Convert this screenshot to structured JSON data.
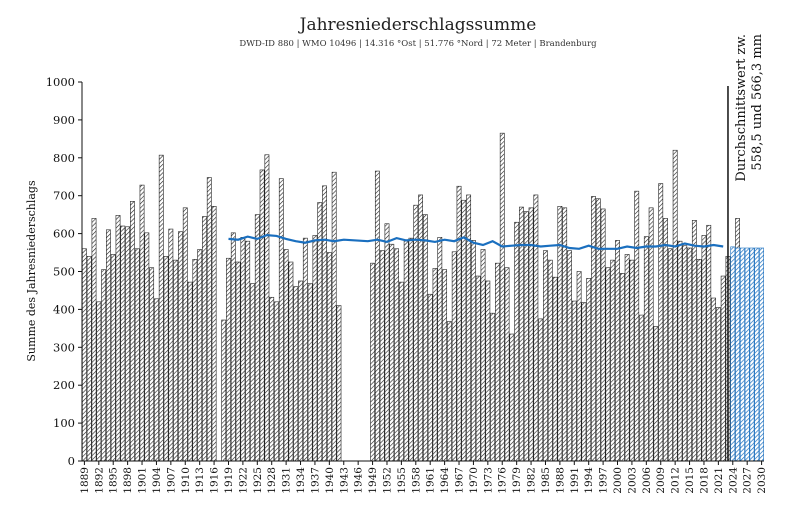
{
  "chart_data": {
    "type": "bar",
    "title": "Jahresniederschlagssumme",
    "subtitle": "DWD-ID 880  |  WMO 10496  |  14.316 °Ost  |  51.776 °Nord  |  72 Meter  |  Brandenburg",
    "xlabel": "",
    "ylabel": "Summe des Jahresniederschlags",
    "ylim": [
      0,
      1000
    ],
    "yticks": [
      0,
      100,
      200,
      300,
      400,
      500,
      600,
      700,
      800,
      900,
      1000
    ],
    "x_start": 1889,
    "x_end": 2030,
    "xtick_labels": [
      "1889",
      "1892",
      "1895",
      "1898",
      "1901",
      "1904",
      "1907",
      "1910",
      "1913",
      "1916",
      "1919",
      "1922",
      "1925",
      "1928",
      "1931",
      "1934",
      "1937",
      "1940",
      "1943",
      "1946",
      "1949",
      "1952",
      "1955",
      "1958",
      "1961",
      "1964",
      "1967",
      "1970",
      "1973",
      "1976",
      "1979",
      "1982",
      "1985",
      "1988",
      "1991",
      "1994",
      "1997",
      "2000",
      "2003",
      "2006",
      "2009",
      "2012",
      "2015",
      "2018",
      "2021",
      "2024",
      "2027",
      "2030"
    ],
    "series": [
      {
        "values": [
          560,
          540,
          640,
          420,
          505,
          610,
          545,
          648,
          620,
          618,
          685,
          560,
          728,
          602,
          510,
          428,
          807,
          540,
          612,
          530,
          605,
          668,
          472,
          532,
          558,
          645,
          748,
          672,
          null,
          372,
          535,
          602,
          525,
          590,
          580,
          468,
          650,
          768,
          808,
          432,
          420,
          745,
          558,
          525,
          460,
          475,
          588,
          468,
          595,
          682,
          726,
          550,
          762,
          410,
          null,
          null,
          null,
          null,
          null,
          null,
          522,
          765,
          555,
          626,
          572,
          560,
          472,
          580,
          588,
          675,
          702,
          650,
          440,
          508,
          590,
          505,
          368,
          552,
          725,
          688,
          702,
          582,
          488,
          558,
          475,
          390,
          522,
          865,
          510,
          335,
          630,
          670,
          658,
          668,
          702,
          375,
          555,
          530,
          485,
          672,
          668,
          555,
          422,
          500,
          418,
          482,
          698,
          692,
          665,
          510,
          530,
          582,
          495,
          545,
          530,
          712,
          385,
          592,
          668,
          355,
          732,
          640,
          560,
          820,
          580,
          568,
          562,
          635,
          532,
          595,
          622,
          430,
          405,
          488,
          540,
          425,
          640
        ],
        "style": "hatched-bars"
      },
      {
        "name": "",
        "values": [
          565,
          562,
          562,
          562,
          562,
          562,
          562
        ],
        "x": [
          2024,
          2025,
          2026,
          2027,
          2028,
          2029,
          2030
        ],
        "style": "blue-hatched-bars"
      },
      {
        "name": "",
        "type": "line",
        "x": [
          1919,
          1921,
          1923,
          1925,
          1927,
          1929,
          1931,
          1933,
          1935,
          1937,
          1939,
          1941,
          1943,
          1948,
          1950,
          1952,
          1954,
          1956,
          1958,
          1960,
          1962,
          1964,
          1966,
          1968,
          1970,
          1972,
          1974,
          1976,
          1978,
          1980,
          1982,
          1984,
          1986,
          1988,
          1990,
          1992,
          1994,
          1996,
          1998,
          2000,
          2002,
          2004,
          2006,
          2008,
          2010,
          2012,
          2014,
          2016,
          2018,
          2020,
          2022
        ],
        "values": [
          586,
          584,
          592,
          586,
          596,
          594,
          586,
          580,
          576,
          582,
          584,
          580,
          584,
          580,
          584,
          578,
          588,
          582,
          584,
          582,
          578,
          584,
          580,
          590,
          576,
          570,
          580,
          566,
          568,
          570,
          570,
          566,
          568,
          570,
          562,
          560,
          568,
          560,
          560,
          560,
          566,
          562,
          566,
          566,
          570,
          566,
          574,
          568,
          566,
          570,
          566
        ],
        "color": "#1a6fbf"
      }
    ],
    "annotation": {
      "x": 2023.5,
      "lines": [
        "Durchschnittswert zw.",
        "558,5 und 566,3 mm"
      ]
    },
    "colors": {
      "bar_stroke": "#222222",
      "forecast": "#1a6fbf",
      "average_line": "#1a6fbf"
    },
    "grid": false
  }
}
